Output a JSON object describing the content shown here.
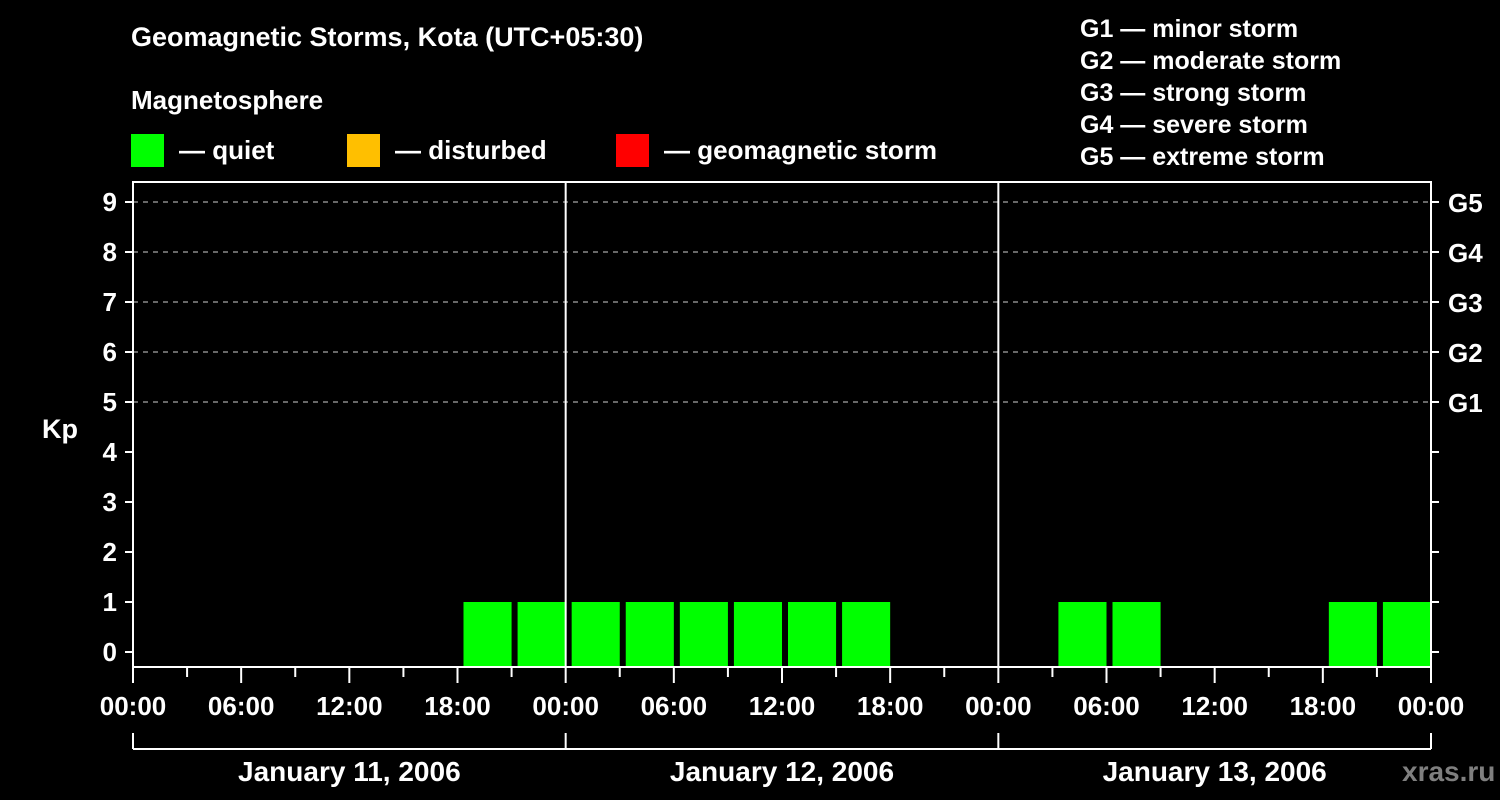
{
  "title": "Geomagnetic Storms, Kota (UTC+05:30)",
  "subtitle": "Magnetosphere",
  "legend": [
    {
      "label": "— quiet",
      "color": "#00ff00"
    },
    {
      "label": "— disturbed",
      "color": "#ffbf00"
    },
    {
      "label": "— geomagnetic storm",
      "color": "#ff0000"
    }
  ],
  "storm_scale": [
    "G1 — minor storm",
    "G2 — moderate storm",
    "G3 — strong storm",
    "G4 — severe storm",
    "G5 — extreme storm"
  ],
  "watermark": "xras.ru",
  "chart_data": {
    "type": "bar",
    "title": "Geomagnetic Storms, Kota (UTC+05:30)",
    "ylabel": "Kp",
    "ylim": [
      0,
      9
    ],
    "yticks": [
      0,
      1,
      2,
      3,
      4,
      5,
      6,
      7,
      8,
      9
    ],
    "right_axis_labels": {
      "5": "G1",
      "6": "G2",
      "7": "G3",
      "8": "G4",
      "9": "G5"
    },
    "grid": "dashed horizontal lines at Kp 5-9",
    "xtick_labels": [
      "00:00",
      "06:00",
      "12:00",
      "18:00",
      "00:00",
      "06:00",
      "12:00",
      "18:00",
      "00:00",
      "06:00",
      "12:00",
      "18:00",
      "00:00"
    ],
    "days": [
      "January 11, 2006",
      "January 12, 2006",
      "January 13, 2006"
    ],
    "interval_hours": 3,
    "series": [
      {
        "name": "January 11, 2006",
        "slots": [
          "00:00",
          "03:00",
          "06:00",
          "09:00",
          "12:00",
          "15:00",
          "18:00",
          "21:00"
        ],
        "values": [
          null,
          null,
          null,
          null,
          null,
          null,
          1,
          1
        ],
        "status": "quiet"
      },
      {
        "name": "January 12, 2006",
        "slots": [
          "00:00",
          "03:00",
          "06:00",
          "09:00",
          "12:00",
          "15:00",
          "18:00",
          "21:00"
        ],
        "values": [
          1,
          1,
          1,
          1,
          1,
          1,
          null,
          null
        ],
        "status": "quiet"
      },
      {
        "name": "January 13, 2006",
        "slots": [
          "00:00",
          "03:00",
          "06:00",
          "09:00",
          "12:00",
          "15:00",
          "18:00",
          "21:00"
        ],
        "values": [
          null,
          1,
          1,
          null,
          null,
          null,
          1,
          1
        ],
        "status": "quiet"
      }
    ]
  }
}
